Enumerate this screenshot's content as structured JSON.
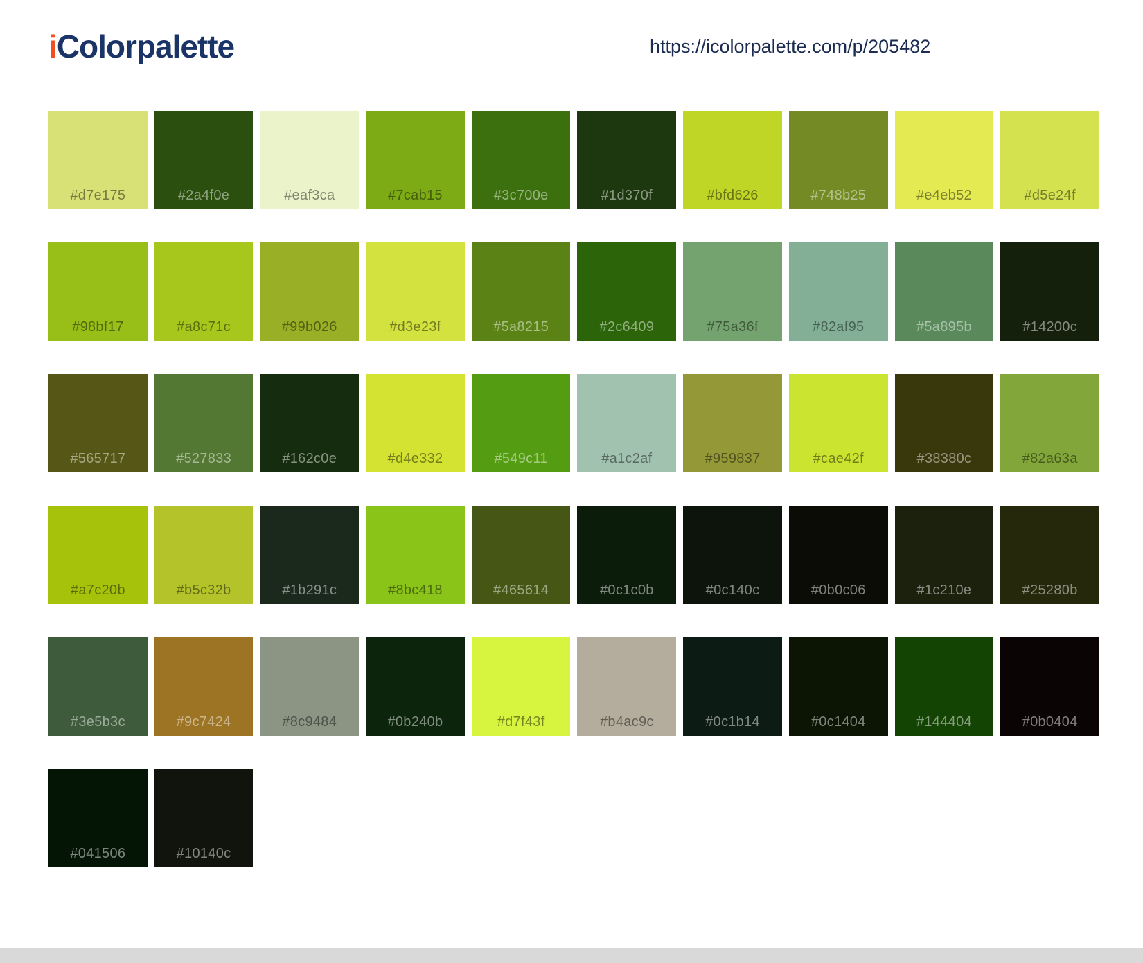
{
  "header": {
    "logo": {
      "prefix": "i",
      "rest": "Colorpalette"
    },
    "url": "https://icolorpalette.com/p/205482"
  },
  "palette": {
    "colors": [
      "#d7e175",
      "#2a4f0e",
      "#eaf3ca",
      "#7cab15",
      "#3c700e",
      "#1d370f",
      "#bfd626",
      "#748b25",
      "#e4eb52",
      "#d5e24f",
      "#98bf17",
      "#a8c71c",
      "#99b026",
      "#d3e23f",
      "#5a8215",
      "#2c6409",
      "#75a36f",
      "#82af95",
      "#5a895b",
      "#14200c",
      "#565717",
      "#527833",
      "#162c0e",
      "#d4e332",
      "#549c11",
      "#a1c2af",
      "#959837",
      "#cae42f",
      "#38380c",
      "#82a63a",
      "#a7c20b",
      "#b5c32b",
      "#1b291c",
      "#8bc418",
      "#465614",
      "#0c1c0b",
      "#0c140c",
      "#0b0c06",
      "#1c210e",
      "#25280b",
      "#3e5b3c",
      "#9c7424",
      "#8c9484",
      "#0b240b",
      "#d7f43f",
      "#b4ac9c",
      "#0c1b14",
      "#0c1404",
      "#144404",
      "#0b0404",
      "#041506",
      "#10140c"
    ]
  },
  "theme": {
    "logo_accent": "#f14f21",
    "logo_text": "#1a3467",
    "url_color": "#1b2c50",
    "header_divider": "#e3e3e3",
    "footer_bar": "#d9d9d9"
  }
}
